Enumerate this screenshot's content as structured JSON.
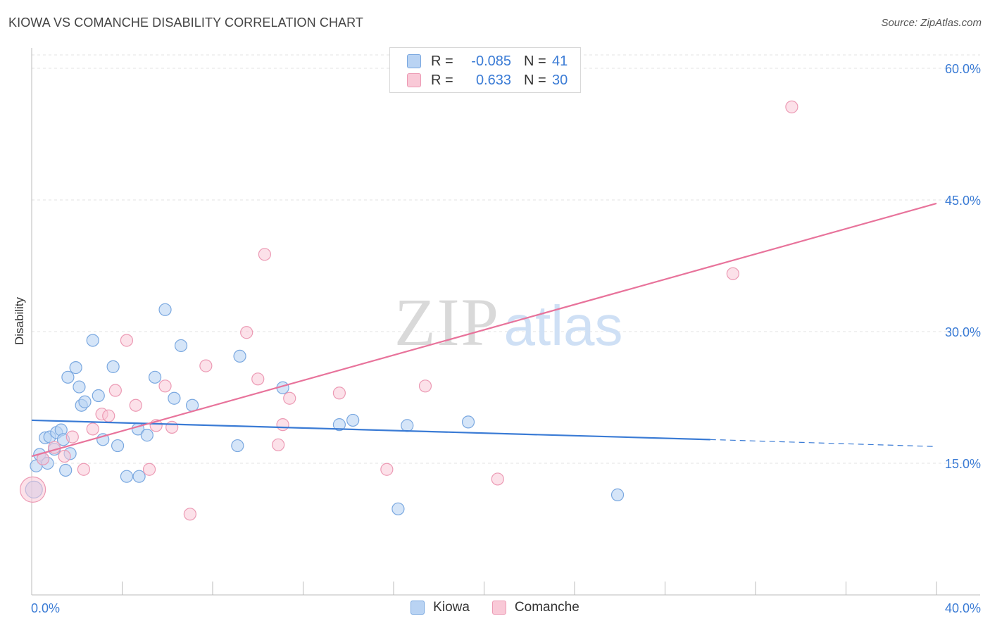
{
  "header": {
    "title": "KIOWA VS COMANCHE DISABILITY CORRELATION CHART",
    "source": "Source: ZipAtlas.com"
  },
  "watermark": {
    "zip": "ZIP",
    "atlas": "atlas"
  },
  "legend": {
    "rows": [
      {
        "r_label": "R =",
        "r_value": "-0.085",
        "n_label": "N =",
        "n_value": "41",
        "fill": "#b9d3f3",
        "stroke": "#7aa8e0"
      },
      {
        "r_label": "R =",
        "r_value": "0.633",
        "n_label": "N =",
        "n_value": "30",
        "fill": "#f9c9d7",
        "stroke": "#ec9ab4"
      }
    ]
  },
  "bottom_legend": [
    {
      "label": "Kiowa",
      "fill": "#b9d3f3",
      "stroke": "#7aa8e0"
    },
    {
      "label": "Comanche",
      "fill": "#f9c9d7",
      "stroke": "#ec9ab4"
    }
  ],
  "chart_data": {
    "type": "scatter",
    "title": "KIOWA VS COMANCHE DISABILITY CORRELATION CHART",
    "xlabel": "",
    "ylabel": "Disability",
    "xlim": [
      0,
      40
    ],
    "ylim": [
      0,
      60
    ],
    "x_tick_labels": [
      "0.0%",
      "40.0%"
    ],
    "y_ticks": [
      15,
      30,
      45,
      60
    ],
    "y_tick_labels": [
      "15.0%",
      "30.0%",
      "45.0%",
      "60.0%"
    ],
    "grid": true,
    "legend_position": "top-center",
    "colors": {
      "kiowa": "#3a7bd5",
      "comanche": "#e8739b"
    },
    "series": [
      {
        "name": "Kiowa",
        "color": "#3a7bd5",
        "fill": "#b9d3f3",
        "points": [
          [
            0.1,
            12.0
          ],
          [
            0.2,
            14.7
          ],
          [
            0.35,
            16.0
          ],
          [
            0.5,
            15.5
          ],
          [
            0.7,
            15.0
          ],
          [
            0.6,
            17.9
          ],
          [
            0.8,
            18.0
          ],
          [
            1.0,
            16.6
          ],
          [
            1.1,
            18.5
          ],
          [
            1.3,
            18.8
          ],
          [
            1.4,
            17.7
          ],
          [
            1.5,
            14.2
          ],
          [
            1.7,
            16.1
          ],
          [
            1.6,
            24.8
          ],
          [
            1.95,
            25.9
          ],
          [
            2.1,
            23.7
          ],
          [
            2.2,
            21.6
          ],
          [
            2.35,
            22.0
          ],
          [
            2.7,
            29.0
          ],
          [
            2.95,
            22.7
          ],
          [
            3.15,
            17.7
          ],
          [
            3.6,
            26.0
          ],
          [
            3.8,
            17.0
          ],
          [
            4.2,
            13.5
          ],
          [
            4.7,
            18.9
          ],
          [
            4.75,
            13.5
          ],
          [
            5.1,
            18.2
          ],
          [
            5.45,
            24.8
          ],
          [
            5.9,
            32.5
          ],
          [
            6.3,
            22.4
          ],
          [
            6.6,
            28.4
          ],
          [
            7.1,
            21.6
          ],
          [
            9.1,
            17.0
          ],
          [
            9.2,
            27.2
          ],
          [
            11.1,
            23.6
          ],
          [
            13.6,
            19.4
          ],
          [
            14.2,
            19.9
          ],
          [
            16.2,
            9.8
          ],
          [
            16.6,
            19.3
          ],
          [
            19.3,
            19.7
          ],
          [
            25.9,
            11.4
          ]
        ]
      },
      {
        "name": "Comanche",
        "color": "#e8739b",
        "fill": "#f9c9d7",
        "points": [
          [
            0.05,
            12.0
          ],
          [
            0.5,
            15.5
          ],
          [
            1.0,
            16.8
          ],
          [
            1.45,
            15.8
          ],
          [
            1.8,
            18.0
          ],
          [
            2.3,
            14.3
          ],
          [
            2.7,
            18.9
          ],
          [
            3.1,
            20.6
          ],
          [
            3.4,
            20.4
          ],
          [
            3.7,
            23.3
          ],
          [
            4.2,
            29.0
          ],
          [
            4.6,
            21.6
          ],
          [
            5.2,
            14.3
          ],
          [
            5.5,
            19.3
          ],
          [
            5.9,
            23.8
          ],
          [
            6.2,
            19.1
          ],
          [
            7.0,
            9.2
          ],
          [
            7.7,
            26.1
          ],
          [
            9.5,
            29.9
          ],
          [
            10.0,
            24.6
          ],
          [
            10.3,
            38.8
          ],
          [
            10.9,
            17.1
          ],
          [
            11.1,
            19.4
          ],
          [
            11.4,
            22.4
          ],
          [
            13.6,
            23.0
          ],
          [
            15.7,
            14.3
          ],
          [
            17.4,
            23.8
          ],
          [
            20.6,
            13.2
          ],
          [
            31.0,
            36.6
          ],
          [
            33.6,
            55.6
          ]
        ]
      }
    ],
    "trend_lines": [
      {
        "name": "Kiowa",
        "x": [
          0,
          30.0
        ],
        "y": [
          19.9,
          17.7
        ],
        "dashed_extension": [
          30.0,
          40.0,
          17.7,
          16.9
        ]
      },
      {
        "name": "Comanche",
        "x": [
          0,
          40.0
        ],
        "y": [
          15.8,
          44.6
        ]
      }
    ]
  }
}
